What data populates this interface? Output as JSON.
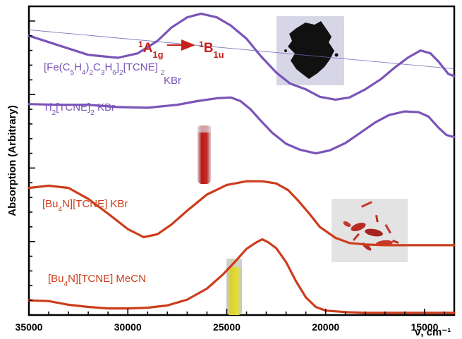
{
  "chart_data": {
    "type": "line",
    "xlabel": "ν, cm⁻¹",
    "ylabel": "Absorption (Arbitrary)",
    "x_axis": {
      "min": 35000,
      "max": 13500,
      "reversed": true,
      "ticks": [
        35000,
        30000,
        25000,
        20000,
        15000
      ],
      "tick_labels": [
        "35000",
        "30000",
        "25000",
        "20000",
        "15000"
      ]
    },
    "y_axis": {
      "min": 0,
      "max": 4.2,
      "tick_labels_shown": false
    },
    "grid": false,
    "legend": "none",
    "colors": {
      "purple": "#7a54b8",
      "red": "#cc3d1c",
      "annotation": "#c8201a",
      "baseline": "#6f66b8"
    },
    "series": [
      {
        "name": "[Fe(C5H4)2C3H6]2[TCNE]2 KBr",
        "color": "#7a54b8",
        "x": [
          35000,
          33500,
          32000,
          30500,
          29500,
          28500,
          27800,
          27000,
          26300,
          25500,
          24800,
          24000,
          23300,
          22500,
          21800,
          21000,
          20300,
          19500,
          18800,
          18000,
          17200,
          16500,
          15800,
          15200,
          14700,
          14300,
          13800,
          13500
        ],
        "y": [
          3.8,
          3.67,
          3.54,
          3.5,
          3.56,
          3.73,
          3.91,
          4.05,
          4.1,
          4.05,
          3.94,
          3.76,
          3.53,
          3.3,
          3.15,
          3.07,
          2.97,
          2.93,
          2.96,
          3.07,
          3.21,
          3.37,
          3.51,
          3.6,
          3.56,
          3.45,
          3.28,
          3.25
        ]
      },
      {
        "name": "Tl2[TCNE]2 KBr",
        "color": "#7a54b8",
        "x": [
          35000,
          33500,
          32000,
          30500,
          29000,
          27500,
          26500,
          25500,
          24800,
          24300,
          23800,
          23300,
          22700,
          22000,
          21300,
          20500,
          19800,
          19000,
          18300,
          17500,
          16800,
          16000,
          15300,
          14800,
          14300,
          13900,
          13500
        ],
        "y": [
          2.87,
          2.86,
          2.86,
          2.83,
          2.82,
          2.86,
          2.91,
          2.95,
          2.96,
          2.91,
          2.8,
          2.65,
          2.48,
          2.33,
          2.25,
          2.2,
          2.24,
          2.34,
          2.47,
          2.62,
          2.72,
          2.77,
          2.76,
          2.7,
          2.55,
          2.45,
          2.42
        ]
      },
      {
        "name": "[Bu4N][TCNE] KBr",
        "color": "#cc3d1c",
        "x": [
          35000,
          34000,
          33000,
          32000,
          31000,
          30000,
          29200,
          28500,
          27800,
          27000,
          26000,
          25000,
          24000,
          23200,
          22500,
          21900,
          21400,
          20800,
          20300,
          19500,
          18800,
          18000,
          17000,
          16000,
          15000,
          14000,
          13500
        ],
        "y": [
          1.73,
          1.76,
          1.73,
          1.58,
          1.38,
          1.17,
          1.06,
          1.1,
          1.23,
          1.42,
          1.64,
          1.77,
          1.82,
          1.82,
          1.79,
          1.7,
          1.56,
          1.37,
          1.2,
          1.05,
          0.98,
          0.96,
          0.95,
          0.95,
          0.95,
          0.95,
          0.95
        ]
      },
      {
        "name": "[Bu4N][TCNE] MeCN",
        "color": "#cc3d1c",
        "x": [
          35000,
          34000,
          33000,
          32000,
          31000,
          30000,
          29000,
          28000,
          27000,
          26000,
          25200,
          24600,
          24000,
          23500,
          23200,
          22900,
          22500,
          22000,
          21500,
          21000,
          20500,
          20000,
          19000,
          18000,
          17000,
          16000,
          15000,
          14000,
          13500
        ],
        "y": [
          0.2,
          0.19,
          0.14,
          0.11,
          0.09,
          0.09,
          0.1,
          0.13,
          0.21,
          0.36,
          0.55,
          0.72,
          0.9,
          0.99,
          1.03,
          0.99,
          0.91,
          0.72,
          0.46,
          0.24,
          0.11,
          0.06,
          0.04,
          0.03,
          0.03,
          0.03,
          0.03,
          0.03,
          0.03
        ]
      }
    ],
    "series_labels": [
      {
        "series": 0,
        "text_parts": [
          "[Fe(C",
          "5",
          "H",
          "4",
          ")",
          "2",
          "C",
          "3",
          "H",
          "6",
          "]",
          "2",
          "[TCNE] ",
          "2"
        ],
        "line2": "KBr",
        "color": "#7a54b8"
      },
      {
        "series": 1,
        "text_parts": [
          "Tl",
          "2",
          "[TCNE]",
          "2",
          " KBr"
        ],
        "color": "#7a54b8"
      },
      {
        "series": 2,
        "text_parts": [
          "[Bu",
          "4",
          "N][TCNE] KBr"
        ],
        "color": "#cc3d1c"
      },
      {
        "series": 3,
        "text_parts": [
          "[Bu",
          "4",
          "N][TCNE] MeCN"
        ],
        "color": "#cc3d1c"
      }
    ],
    "annotations": {
      "transition": {
        "from_base": "A",
        "from_sup": "1",
        "from_sub": "1g",
        "to_base": "B",
        "to_sup": "1",
        "to_sub": "1u",
        "color": "#c8201a"
      },
      "baseline": {
        "x": [
          35000,
          13500
        ],
        "y": [
          3.88,
          3.35
        ]
      },
      "insets": [
        "black-powder-photo",
        "red-solution-vial-photo",
        "red-crystals-photo",
        "yellow-solution-vial-photo"
      ]
    }
  }
}
